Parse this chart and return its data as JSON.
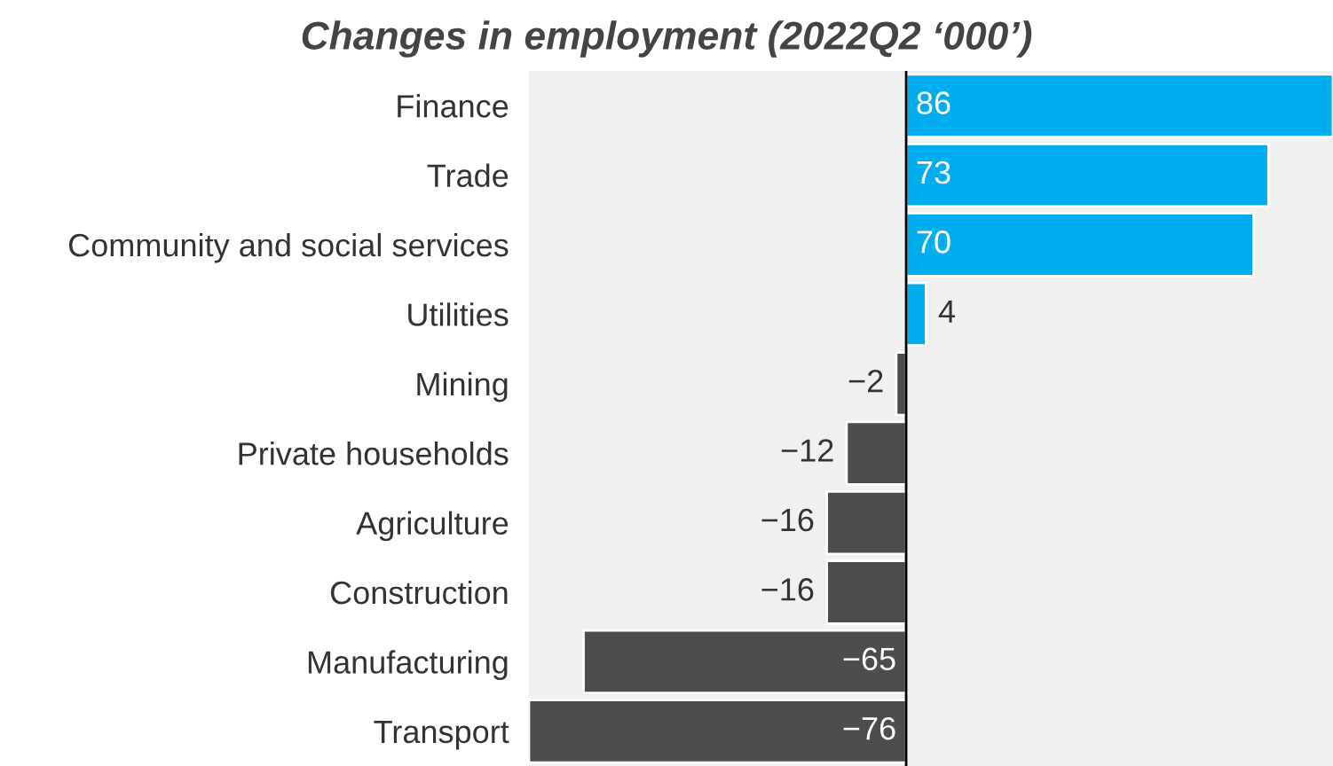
{
  "chart_data": {
    "type": "bar",
    "orientation": "horizontal",
    "title": "Changes in employment (2022Q2 ‘000’)",
    "categories": [
      "Finance",
      "Trade",
      "Community and social services",
      "Utilities",
      "Mining",
      "Private households",
      "Agriculture",
      "Construction",
      "Manufacturing",
      "Transport"
    ],
    "values": [
      86,
      73,
      70,
      4,
      -2,
      -12,
      -16,
      -16,
      -65,
      -76
    ],
    "colors": [
      "#00aeef",
      "#00aeef",
      "#00aeef",
      "#00aeef",
      "#4d4d4d",
      "#4d4d4d",
      "#4d4d4d",
      "#4d4d4d",
      "#4d4d4d",
      "#4d4d4d"
    ],
    "xlim": [
      -76,
      86
    ],
    "data_labels": true,
    "tick_labels": "y",
    "grid": false,
    "legend": false
  }
}
